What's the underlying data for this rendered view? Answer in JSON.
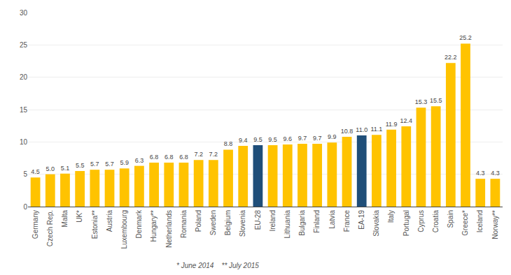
{
  "chart_data": {
    "type": "bar",
    "categories": [
      "Germany",
      "Czech Rep.",
      "Malta",
      "UK*",
      "Estonia**",
      "Austria",
      "Luxembourg",
      "Denmark",
      "Hungary**",
      "Netherlands",
      "Romania",
      "Poland",
      "Sweden",
      "Belgium",
      "Slovenia",
      "EU-28",
      "Ireland",
      "Lithuania",
      "Bulgaria",
      "Finland",
      "Latvia",
      "France",
      "EA-19",
      "Slovakia",
      "Italy",
      "Portugal",
      "Cyprus",
      "Croatia",
      "Spain",
      "Greece*",
      "Iceland",
      "Norway**"
    ],
    "values": [
      4.5,
      5.0,
      5.1,
      5.5,
      5.7,
      5.7,
      5.9,
      6.3,
      6.8,
      6.8,
      6.8,
      7.2,
      7.2,
      8.8,
      9.4,
      9.5,
      9.5,
      9.6,
      9.7,
      9.7,
      9.9,
      10.8,
      11.0,
      11.1,
      11.9,
      12.4,
      15.3,
      15.5,
      22.2,
      25.2,
      4.3,
      4.3
    ],
    "value_labels": [
      "4.5",
      "5.0",
      "5.1",
      "5.5",
      "5.7",
      "5.7",
      "5.9",
      "6.3",
      "6.8",
      "6.8",
      "6.8",
      "7.2",
      "7.2",
      "8.8",
      "9.4",
      "9.5",
      "9.5",
      "9.6",
      "9.7",
      "9.7",
      "9.9",
      "10.8",
      "11.0",
      "11.1",
      "11.9",
      "12.4",
      "15.3",
      "15.5",
      "22.2",
      "25.2",
      "4.3",
      "4.3"
    ],
    "colors": [
      "#FFC300",
      "#FFC300",
      "#FFC300",
      "#FFC300",
      "#FFC300",
      "#FFC300",
      "#FFC300",
      "#FFC300",
      "#FFC300",
      "#FFC300",
      "#FFC300",
      "#FFC300",
      "#FFC300",
      "#FFC300",
      "#FFC300",
      "#1F4E79",
      "#FFC300",
      "#FFC300",
      "#FFC300",
      "#FFC300",
      "#FFC300",
      "#FFC300",
      "#1F4E79",
      "#FFC300",
      "#FFC300",
      "#FFC300",
      "#FFC300",
      "#FFC300",
      "#FFC300",
      "#FFC300",
      "#FFC300",
      "#FFC300"
    ],
    "ylim": [
      0,
      30
    ],
    "yticks": [
      0,
      5,
      10,
      15,
      20,
      25,
      30
    ],
    "grid": true,
    "data_labels": true,
    "annotations": [
      "* June 2014    ** July 2015"
    ]
  }
}
